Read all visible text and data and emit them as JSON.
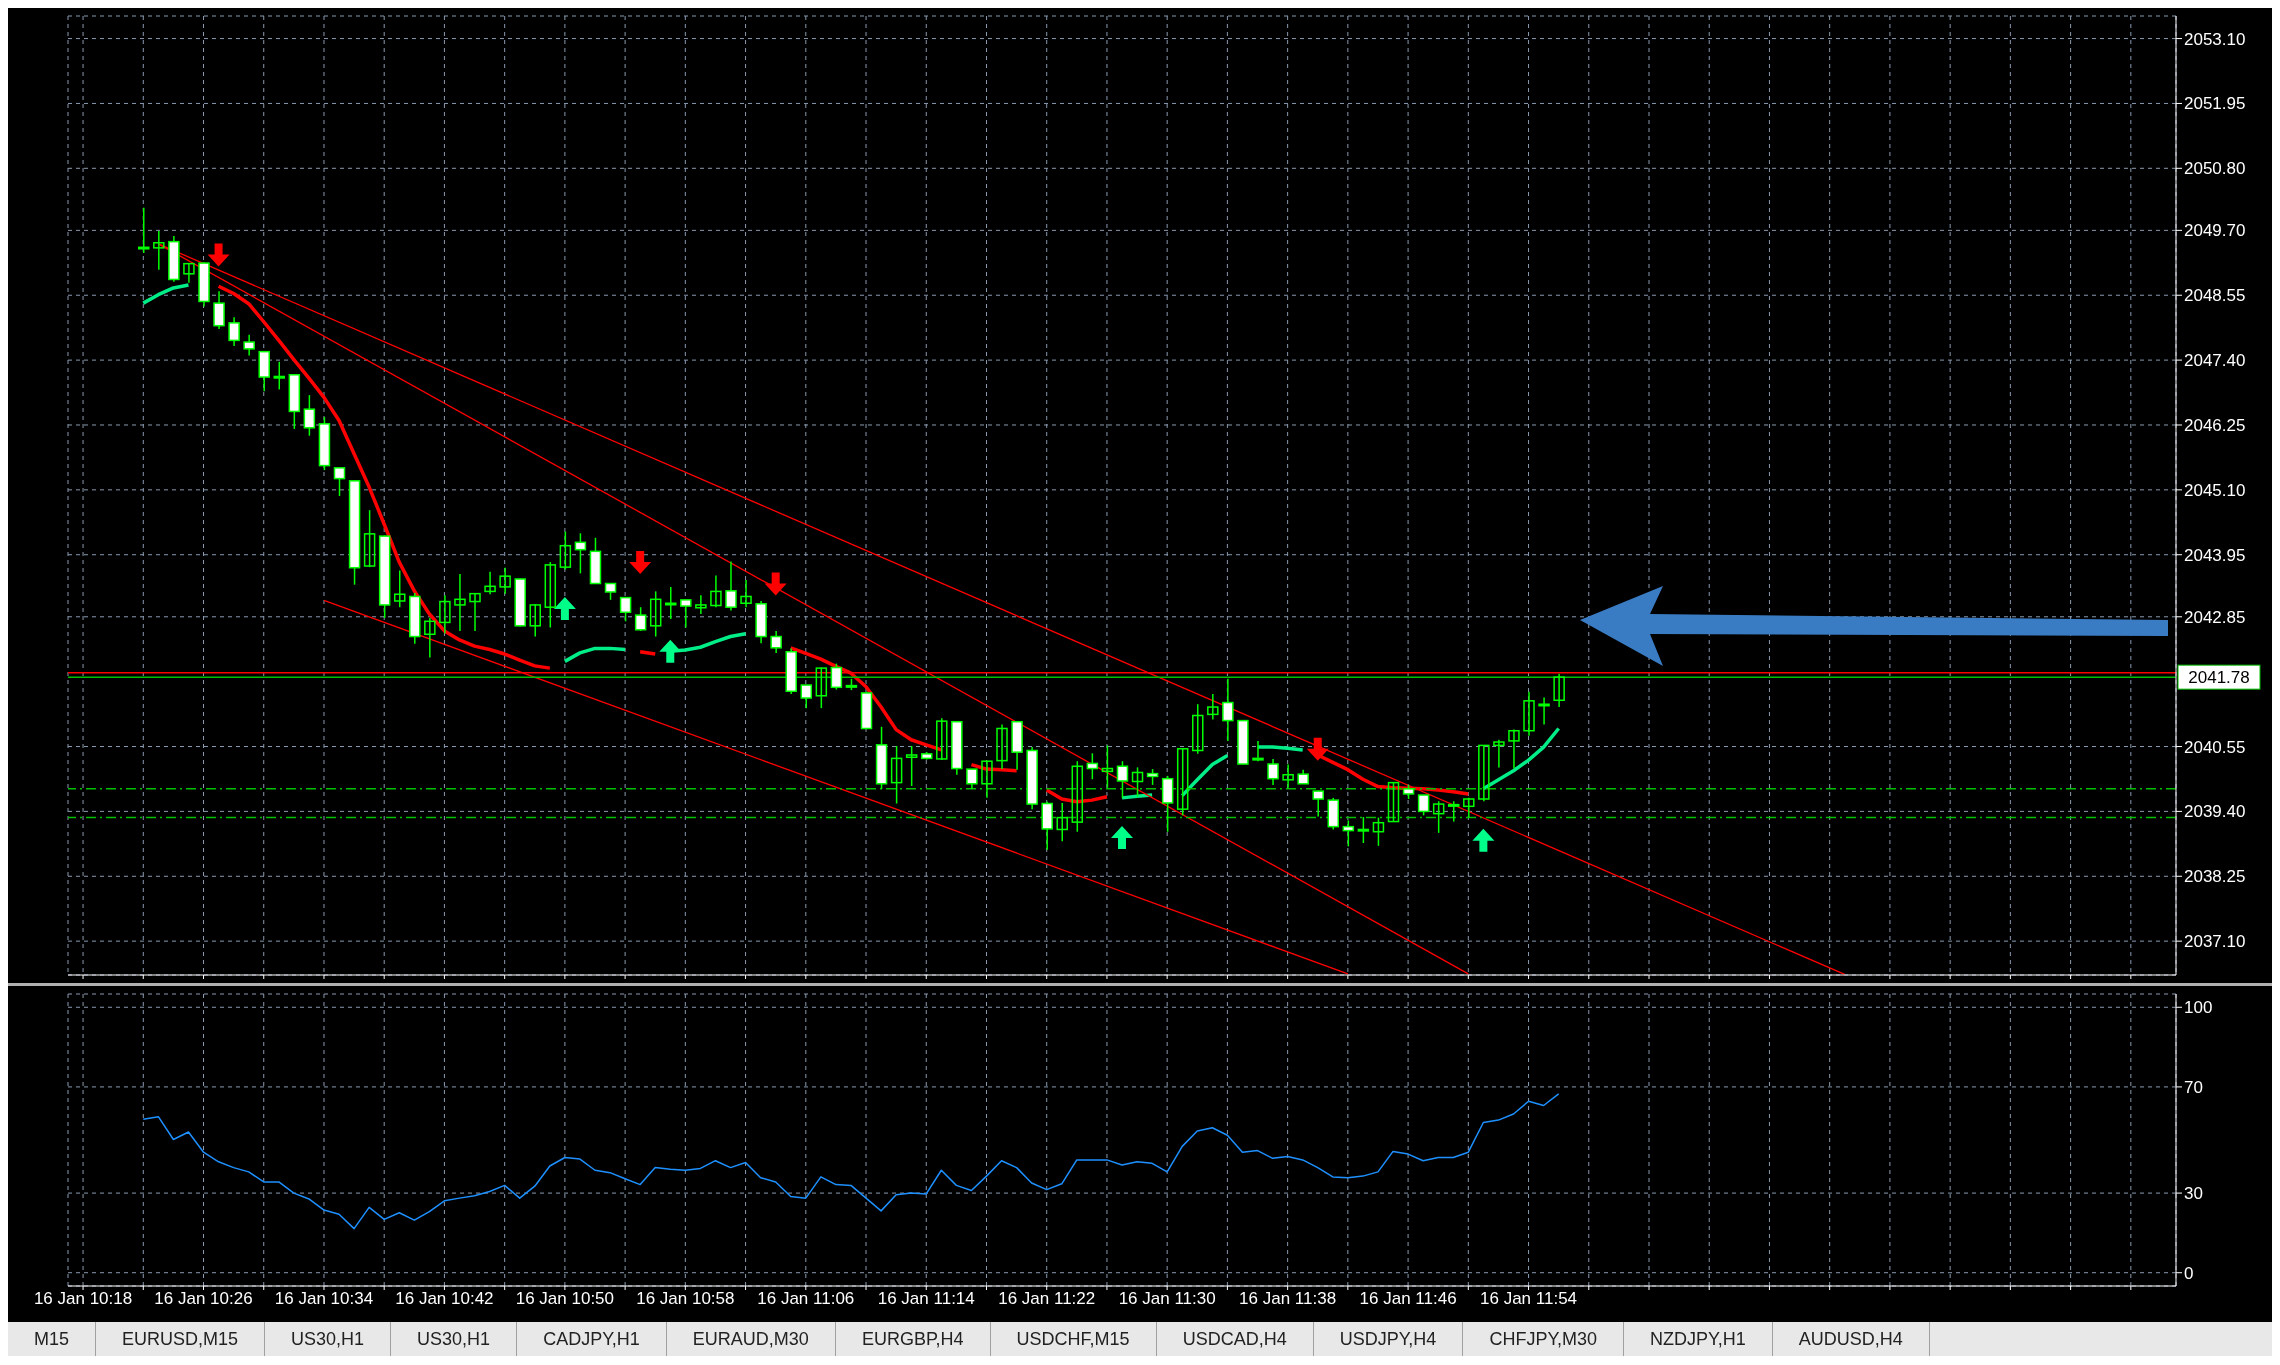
{
  "chart_data": [
    {
      "type": "candlestick",
      "color": "#00ff00",
      "grid": true,
      "tick_labels": "y",
      "x": [
        "--01-16T10:22",
        "--01-16T10:23",
        "--01-16T10:24",
        "--01-16T10:25",
        "--01-16T10:26",
        "--01-16T10:27",
        "--01-16T10:28",
        "--01-16T10:29",
        "--01-16T10:30",
        "--01-16T10:31",
        "--01-16T10:32",
        "--01-16T10:33",
        "--01-16T10:34",
        "--01-16T10:35",
        "--01-16T10:36",
        "--01-16T10:37",
        "--01-16T10:38",
        "--01-16T10:39",
        "--01-16T10:40",
        "--01-16T10:41",
        "--01-16T10:42",
        "--01-16T10:43",
        "--01-16T10:44",
        "--01-16T10:45",
        "--01-16T10:46",
        "--01-16T10:47",
        "--01-16T10:48",
        "--01-16T10:49",
        "--01-16T10:50",
        "--01-16T10:51",
        "--01-16T10:52",
        "--01-16T10:53",
        "--01-16T10:54",
        "--01-16T10:55",
        "--01-16T10:56",
        "--01-16T10:57",
        "--01-16T10:58",
        "--01-16T10:59",
        "--01-16T11:00",
        "--01-16T11:01",
        "--01-16T11:02",
        "--01-16T11:03",
        "--01-16T11:04",
        "--01-16T11:05",
        "--01-16T11:06",
        "--01-16T11:07",
        "--01-16T11:08",
        "--01-16T11:09",
        "--01-16T11:10",
        "--01-16T11:11",
        "--01-16T11:12",
        "--01-16T11:13",
        "--01-16T11:14",
        "--01-16T11:15",
        "--01-16T11:16",
        "--01-16T11:17",
        "--01-16T11:18",
        "--01-16T11:19",
        "--01-16T11:20",
        "--01-16T11:21",
        "--01-16T11:22",
        "--01-16T11:23",
        "--01-16T11:24",
        "--01-16T11:25",
        "--01-16T11:26",
        "--01-16T11:27",
        "--01-16T11:28",
        "--01-16T11:29",
        "--01-16T11:30",
        "--01-16T11:31",
        "--01-16T11:32",
        "--01-16T11:33",
        "--01-16T11:34",
        "--01-16T11:35",
        "--01-16T11:36",
        "--01-16T11:37",
        "--01-16T11:38",
        "--01-16T11:39",
        "--01-16T11:40",
        "--01-16T11:41",
        "--01-16T11:42",
        "--01-16T11:43",
        "--01-16T11:44",
        "--01-16T11:45",
        "--01-16T11:46",
        "--01-16T11:47",
        "--01-16T11:48",
        "--01-16T11:49",
        "--01-16T11:50",
        "--01-16T11:51",
        "--01-16T11:52",
        "--01-16T11:53",
        "--01-16T11:54",
        "--01-16T11:55",
        "--01-16T11:56"
      ],
      "ohlc": [
        [
          2049.38,
          2050.1,
          2049.3,
          2049.4
        ],
        [
          2049.39,
          2049.69,
          2049.0,
          2049.48
        ],
        [
          2049.5,
          2049.6,
          2048.79,
          2048.83
        ],
        [
          2048.93,
          2049.12,
          2048.77,
          2049.11
        ],
        [
          2049.12,
          2049.13,
          2048.35,
          2048.44
        ],
        [
          2048.41,
          2048.62,
          2047.95,
          2048.01
        ],
        [
          2048.06,
          2048.16,
          2047.65,
          2047.75
        ],
        [
          2047.72,
          2047.85,
          2047.48,
          2047.6
        ],
        [
          2047.55,
          2047.56,
          2046.85,
          2047.1
        ],
        [
          2047.11,
          2047.37,
          2046.88,
          2047.1
        ],
        [
          2047.14,
          2047.15,
          2046.18,
          2046.49
        ],
        [
          2046.53,
          2046.78,
          2046.06,
          2046.2
        ],
        [
          2046.27,
          2046.39,
          2045.45,
          2045.53
        ],
        [
          2045.49,
          2045.49,
          2044.99,
          2045.3
        ],
        [
          2045.26,
          2045.27,
          2043.42,
          2043.72
        ],
        [
          2043.75,
          2044.74,
          2043.73,
          2044.32
        ],
        [
          2044.28,
          2044.29,
          2042.83,
          2043.06
        ],
        [
          2043.13,
          2043.67,
          2043.02,
          2043.25
        ],
        [
          2043.21,
          2043.27,
          2042.37,
          2042.5
        ],
        [
          2042.54,
          2042.83,
          2042.13,
          2042.77
        ],
        [
          2042.75,
          2043.23,
          2042.56,
          2043.12
        ],
        [
          2043.06,
          2043.61,
          2042.6,
          2043.16
        ],
        [
          2043.12,
          2043.26,
          2042.6,
          2043.26
        ],
        [
          2043.3,
          2043.65,
          2043.25,
          2043.39
        ],
        [
          2043.38,
          2043.72,
          2043.26,
          2043.57
        ],
        [
          2043.52,
          2043.53,
          2042.68,
          2042.69
        ],
        [
          2042.69,
          2043.07,
          2042.5,
          2043.06
        ],
        [
          2043.02,
          2043.82,
          2042.66,
          2043.77
        ],
        [
          2043.73,
          2044.36,
          2043.69,
          2044.11
        ],
        [
          2044.17,
          2044.33,
          2043.62,
          2044.04
        ],
        [
          2044.01,
          2044.25,
          2043.44,
          2043.44
        ],
        [
          2043.44,
          2043.45,
          2043.15,
          2043.29
        ],
        [
          2043.19,
          2043.2,
          2042.77,
          2042.93
        ],
        [
          2042.88,
          2043.02,
          2042.6,
          2042.62
        ],
        [
          2042.69,
          2043.3,
          2042.5,
          2043.16
        ],
        [
          2043.08,
          2043.38,
          2042.81,
          2043.09
        ],
        [
          2043.15,
          2043.15,
          2042.66,
          2043.04
        ],
        [
          2043.01,
          2043.23,
          2042.9,
          2043.06
        ],
        [
          2043.05,
          2043.58,
          2043.02,
          2043.3
        ],
        [
          2043.31,
          2043.83,
          2042.96,
          2043.02
        ],
        [
          2043.09,
          2043.5,
          2043.02,
          2043.21
        ],
        [
          2043.08,
          2043.13,
          2042.38,
          2042.5
        ],
        [
          2042.5,
          2042.6,
          2042.21,
          2042.3
        ],
        [
          2042.23,
          2042.29,
          2041.48,
          2041.53
        ],
        [
          2041.64,
          2041.64,
          2041.23,
          2041.41
        ],
        [
          2041.45,
          2041.95,
          2041.23,
          2041.94
        ],
        [
          2041.95,
          2042.02,
          2041.56,
          2041.6
        ],
        [
          2041.63,
          2041.75,
          2041.55,
          2041.61
        ],
        [
          2041.5,
          2041.52,
          2040.87,
          2040.87
        ],
        [
          2040.58,
          2040.9,
          2039.8,
          2039.89
        ],
        [
          2039.91,
          2040.56,
          2039.54,
          2040.34
        ],
        [
          2040.36,
          2040.56,
          2039.85,
          2040.4
        ],
        [
          2040.42,
          2040.45,
          2040.32,
          2040.34
        ],
        [
          2040.33,
          2041.05,
          2040.31,
          2041.0
        ],
        [
          2040.99,
          2041.0,
          2040.05,
          2040.16
        ],
        [
          2040.15,
          2040.15,
          2039.8,
          2039.89
        ],
        [
          2039.89,
          2040.3,
          2039.64,
          2040.29
        ],
        [
          2040.3,
          2040.94,
          2040.15,
          2040.87
        ],
        [
          2040.99,
          2041.0,
          2040.14,
          2040.45
        ],
        [
          2040.48,
          2040.54,
          2039.44,
          2039.53
        ],
        [
          2039.54,
          2039.57,
          2038.72,
          2039.09
        ],
        [
          2039.08,
          2039.55,
          2038.87,
          2039.29
        ],
        [
          2039.21,
          2040.29,
          2039.04,
          2040.2
        ],
        [
          2040.25,
          2040.43,
          2039.97,
          2040.16
        ],
        [
          2040.11,
          2040.57,
          2039.82,
          2040.16
        ],
        [
          2040.2,
          2040.29,
          2039.64,
          2039.94
        ],
        [
          2039.93,
          2040.18,
          2039.66,
          2040.09
        ],
        [
          2040.07,
          2040.15,
          2039.87,
          2040.02
        ],
        [
          2039.98,
          2040.03,
          2039.04,
          2039.55
        ],
        [
          2039.44,
          2040.51,
          2039.33,
          2040.51
        ],
        [
          2040.48,
          2041.3,
          2040.42,
          2041.1
        ],
        [
          2041.12,
          2041.48,
          2041.03,
          2041.25
        ],
        [
          2041.33,
          2041.75,
          2040.65,
          2041.01
        ],
        [
          2041.01,
          2041.02,
          2040.23,
          2040.24
        ],
        [
          2040.32,
          2040.65,
          2040.29,
          2040.34
        ],
        [
          2040.24,
          2040.33,
          2039.87,
          2039.98
        ],
        [
          2039.96,
          2040.23,
          2039.82,
          2040.05
        ],
        [
          2040.06,
          2040.14,
          2039.89,
          2039.89
        ],
        [
          2039.76,
          2039.77,
          2039.31,
          2039.62
        ],
        [
          2039.6,
          2039.64,
          2039.08,
          2039.13
        ],
        [
          2039.13,
          2039.24,
          2038.78,
          2039.06
        ],
        [
          2039.08,
          2039.3,
          2038.84,
          2039.08
        ],
        [
          2039.04,
          2039.29,
          2038.79,
          2039.2
        ],
        [
          2039.22,
          2039.91,
          2039.22,
          2039.91
        ],
        [
          2039.8,
          2039.87,
          2039.62,
          2039.71
        ],
        [
          2039.69,
          2039.69,
          2039.33,
          2039.4
        ],
        [
          2039.36,
          2039.58,
          2039.02,
          2039.53
        ],
        [
          2039.51,
          2039.58,
          2039.22,
          2039.52
        ],
        [
          2039.49,
          2039.64,
          2039.29,
          2039.62
        ],
        [
          2039.62,
          2040.57,
          2039.58,
          2040.57
        ],
        [
          2040.57,
          2040.67,
          2040.18,
          2040.63
        ],
        [
          2040.65,
          2040.85,
          2040.16,
          2040.83
        ],
        [
          2040.83,
          2041.52,
          2040.74,
          2041.36
        ],
        [
          2041.3,
          2041.42,
          2040.94,
          2041.3
        ],
        [
          2041.37,
          2041.84,
          2041.25,
          2041.78
        ]
      ],
      "series": [
        {
          "type": "line",
          "color": "#ff0000",
          "values": [
            null,
            null,
            null,
            null,
            null,
            2048.71,
            2048.58,
            2048.4,
            2048.08,
            2047.75,
            2047.41,
            2047.08,
            2046.74,
            2046.33,
            2045.74,
            2045.15,
            2044.49,
            2043.82,
            2043.31,
            2042.9,
            2042.6,
            2042.44,
            2042.33,
            2042.27,
            2042.19,
            2042.08,
            2041.98,
            2041.94,
            null,
            null,
            null,
            null,
            null,
            2042.23,
            2042.19,
            null,
            null,
            null,
            null,
            null,
            null,
            null,
            null,
            2042.3,
            2042.2,
            2042.1,
            2041.97,
            2041.85,
            2041.61,
            2041.25,
            2040.85,
            2040.67,
            2040.58,
            2040.49,
            null,
            2040.23,
            2040.15,
            2040.14,
            2040.12,
            null,
            2039.78,
            2039.62,
            2039.57,
            2039.6,
            2039.66,
            null,
            null,
            null,
            null,
            null,
            null,
            null,
            null,
            null,
            null,
            null,
            null,
            null,
            2040.4,
            2040.27,
            2040.14,
            2039.97,
            2039.84,
            2039.82,
            2039.81,
            2039.8,
            2039.78,
            2039.75,
            2039.71,
            null,
            null,
            null,
            null,
            null,
            null
          ]
        },
        {
          "type": "line",
          "color": "#00ee88",
          "values": [
            2048.41,
            2048.56,
            2048.68,
            2048.73,
            null,
            null,
            null,
            null,
            null,
            null,
            null,
            null,
            null,
            null,
            null,
            null,
            null,
            null,
            null,
            null,
            null,
            null,
            null,
            null,
            null,
            null,
            null,
            null,
            2042.06,
            2042.21,
            2042.29,
            2042.29,
            2042.27,
            null,
            null,
            2042.24,
            2042.26,
            2042.31,
            2042.41,
            2042.5,
            2042.55,
            null,
            null,
            null,
            null,
            null,
            null,
            null,
            null,
            null,
            null,
            null,
            null,
            null,
            null,
            null,
            null,
            null,
            null,
            null,
            null,
            null,
            null,
            null,
            null,
            2039.64,
            2039.67,
            2039.69,
            null,
            2039.68,
            2039.96,
            2040.23,
            2040.39,
            null,
            2040.54,
            2040.54,
            2040.52,
            2040.49,
            null,
            null,
            null,
            null,
            null,
            null,
            null,
            null,
            null,
            null,
            null,
            2039.8,
            2039.96,
            2040.12,
            2040.31,
            2040.54,
            2040.87
          ]
        },
        {
          "type": "line",
          "color": "#ff0000",
          "x": [
            "--01-16T10:23",
            "--01-16T12:15"
          ],
          "values": [
            2049.46,
            2036.51
          ]
        },
        {
          "type": "line",
          "color": "#ff0000",
          "x": [
            "--01-16T10:23",
            "--01-16T11:50"
          ],
          "values": [
            2049.46,
            2036.52
          ]
        },
        {
          "type": "line",
          "color": "#ff0000",
          "x": [
            "--01-16T10:34",
            "--01-16T11:42"
          ],
          "values": [
            2043.14,
            2036.52
          ]
        },
        {
          "type": "scatter",
          "color": "#ff0000",
          "marker": "triangle",
          "x": [
            "--01-16T10:27",
            "--01-16T10:55",
            "--01-16T11:04",
            "--01-16T11:40"
          ],
          "values": [
            2049.27,
            2043.82,
            2043.44,
            2040.51
          ]
        },
        {
          "type": "scatter",
          "color": "#00ff88",
          "marker": "triangle",
          "x": [
            "--01-16T10:50",
            "--01-16T10:57",
            "--01-16T11:27",
            "--01-16T11:51"
          ],
          "values": [
            2042.99,
            2042.23,
            2038.93,
            2038.88
          ]
        }
      ],
      "ref_lines": [
        {
          "axis": "y",
          "value": 2041.86,
          "label": null,
          "color": "#ff0000"
        },
        {
          "axis": "y",
          "value": 2041.78,
          "label": "2041.78",
          "color": "#00c000"
        },
        {
          "axis": "y",
          "value": 2039.8,
          "label": null,
          "color": "#00c000",
          "line_style": "dashed"
        },
        {
          "axis": "y",
          "value": 2039.29,
          "label": null,
          "color": "#00c000",
          "line_style": "dashed"
        }
      ],
      "xlim": [
        "--01-16T10:17",
        "--01-16T12:37"
      ],
      "xticks": [
        {
          "value": "--01-16T10:18",
          "label": null
        },
        {
          "value": "--01-16T10:22",
          "label": null
        },
        {
          "value": "--01-16T10:26",
          "label": null
        },
        {
          "value": "--01-16T10:30",
          "label": null
        },
        {
          "value": "--01-16T10:34",
          "label": null
        },
        {
          "value": "--01-16T10:38",
          "label": null
        },
        {
          "value": "--01-16T10:42",
          "label": null
        },
        {
          "value": "--01-16T10:46",
          "label": null
        },
        {
          "value": "--01-16T10:50",
          "label": null
        },
        {
          "value": "--01-16T10:54",
          "label": null
        },
        {
          "value": "--01-16T10:58",
          "label": null
        },
        {
          "value": "--01-16T11:02",
          "label": null
        },
        {
          "value": "--01-16T11:06",
          "label": null
        },
        {
          "value": "--01-16T11:10",
          "label": null
        },
        {
          "value": "--01-16T11:14",
          "label": null
        },
        {
          "value": "--01-16T11:18",
          "label": null
        },
        {
          "value": "--01-16T11:22",
          "label": null
        },
        {
          "value": "--01-16T11:26",
          "label": null
        },
        {
          "value": "--01-16T11:30",
          "label": null
        },
        {
          "value": "--01-16T11:34",
          "label": null
        },
        {
          "value": "--01-16T11:38",
          "label": null
        },
        {
          "value": "--01-16T11:42",
          "label": null
        },
        {
          "value": "--01-16T11:46",
          "label": null
        },
        {
          "value": "--01-16T11:50",
          "label": null
        },
        {
          "value": "--01-16T11:54",
          "label": null
        },
        {
          "value": "--01-16T11:58",
          "label": null
        },
        {
          "value": "--01-16T12:02",
          "label": null
        },
        {
          "value": "--01-16T12:06",
          "label": null
        },
        {
          "value": "--01-16T12:10",
          "label": null
        },
        {
          "value": "--01-16T12:14",
          "label": null
        },
        {
          "value": "--01-16T12:18",
          "label": null
        },
        {
          "value": "--01-16T12:22",
          "label": null
        },
        {
          "value": "--01-16T12:26",
          "label": null
        },
        {
          "value": "--01-16T12:30",
          "label": null
        },
        {
          "value": "--01-16T12:34",
          "label": null
        }
      ],
      "ylim": [
        2036.5,
        2053.5
      ],
      "yticks": [
        {
          "value": 2053.1,
          "label": "2053.10"
        },
        {
          "value": 2051.95,
          "label": "2051.95"
        },
        {
          "value": 2050.8,
          "label": "2050.80"
        },
        {
          "value": 2049.7,
          "label": "2049.70"
        },
        {
          "value": 2048.55,
          "label": "2048.55"
        },
        {
          "value": 2047.4,
          "label": "2047.40"
        },
        {
          "value": 2046.25,
          "label": "2046.25"
        },
        {
          "value": 2045.1,
          "label": "2045.10"
        },
        {
          "value": 2043.95,
          "label": "2043.95"
        },
        {
          "value": 2042.85,
          "label": "2042.85"
        },
        {
          "value": 2040.55,
          "label": "2040.55"
        },
        {
          "value": 2039.4,
          "label": "2039.40"
        },
        {
          "value": 2038.25,
          "label": "2038.25"
        },
        {
          "value": 2037.1,
          "label": "2037.10"
        }
      ]
    },
    {
      "type": "line",
      "color": "#1e90ff",
      "grid": true,
      "x": [
        "--01-16T10:22",
        "--01-16T10:23",
        "--01-16T10:24",
        "--01-16T10:25",
        "--01-16T10:26",
        "--01-16T10:27",
        "--01-16T10:28",
        "--01-16T10:29",
        "--01-16T10:30",
        "--01-16T10:31",
        "--01-16T10:32",
        "--01-16T10:33",
        "--01-16T10:34",
        "--01-16T10:35",
        "--01-16T10:36",
        "--01-16T10:37",
        "--01-16T10:38",
        "--01-16T10:39",
        "--01-16T10:40",
        "--01-16T10:41",
        "--01-16T10:42",
        "--01-16T10:43",
        "--01-16T10:44",
        "--01-16T10:45",
        "--01-16T10:46",
        "--01-16T10:47",
        "--01-16T10:48",
        "--01-16T10:49",
        "--01-16T10:50",
        "--01-16T10:51",
        "--01-16T10:52",
        "--01-16T10:53",
        "--01-16T10:54",
        "--01-16T10:55",
        "--01-16T10:56",
        "--01-16T10:57",
        "--01-16T10:58",
        "--01-16T10:59",
        "--01-16T11:00",
        "--01-16T11:01",
        "--01-16T11:02",
        "--01-16T11:03",
        "--01-16T11:04",
        "--01-16T11:05",
        "--01-16T11:06",
        "--01-16T11:07",
        "--01-16T11:08",
        "--01-16T11:09",
        "--01-16T11:10",
        "--01-16T11:11",
        "--01-16T11:12",
        "--01-16T11:13",
        "--01-16T11:14",
        "--01-16T11:15",
        "--01-16T11:16",
        "--01-16T11:17",
        "--01-16T11:18",
        "--01-16T11:19",
        "--01-16T11:20",
        "--01-16T11:21",
        "--01-16T11:22",
        "--01-16T11:23",
        "--01-16T11:24",
        "--01-16T11:25",
        "--01-16T11:26",
        "--01-16T11:27",
        "--01-16T11:28",
        "--01-16T11:29",
        "--01-16T11:30",
        "--01-16T11:31",
        "--01-16T11:32",
        "--01-16T11:33",
        "--01-16T11:34",
        "--01-16T11:35",
        "--01-16T11:36",
        "--01-16T11:37",
        "--01-16T11:38",
        "--01-16T11:39",
        "--01-16T11:40",
        "--01-16T11:41",
        "--01-16T11:42",
        "--01-16T11:43",
        "--01-16T11:44",
        "--01-16T11:45",
        "--01-16T11:46",
        "--01-16T11:47",
        "--01-16T11:48",
        "--01-16T11:49",
        "--01-16T11:50",
        "--01-16T11:51",
        "--01-16T11:52",
        "--01-16T11:53",
        "--01-16T11:54",
        "--01-16T11:55",
        "--01-16T11:56"
      ],
      "values": [
        57.8,
        58.8,
        50.2,
        53.0,
        45.4,
        41.8,
        39.6,
        38.0,
        34.2,
        34.2,
        30.0,
        27.8,
        23.6,
        22.0,
        16.6,
        24.6,
        20.1,
        22.6,
        19.8,
        23.0,
        27.1,
        28.1,
        29.0,
        30.6,
        32.9,
        28.1,
        32.6,
        40.2,
        43.4,
        42.8,
        38.6,
        37.7,
        35.4,
        33.2,
        39.6,
        39.0,
        38.6,
        39.3,
        42.2,
        39.6,
        41.5,
        35.8,
        34.2,
        28.7,
        28.1,
        36.1,
        33.2,
        32.9,
        28.1,
        23.3,
        29.4,
        30.0,
        29.7,
        38.6,
        32.9,
        31.0,
        36.4,
        42.2,
        39.6,
        33.8,
        31.3,
        33.5,
        42.5,
        42.5,
        42.5,
        40.6,
        41.8,
        41.2,
        38.0,
        47.6,
        53.4,
        54.6,
        51.8,
        45.4,
        46.0,
        43.1,
        43.8,
        42.5,
        39.6,
        36.1,
        35.8,
        36.4,
        38.0,
        45.7,
        44.7,
        42.2,
        43.4,
        43.4,
        45.4,
        56.6,
        57.5,
        59.8,
        64.6,
        63.0,
        67.4
      ],
      "xlim": [
        "--01-16T10:17",
        "--01-16T12:37"
      ],
      "xticks": [
        {
          "value": "--01-16T10:18",
          "label": "16 Jan 10:18"
        },
        {
          "value": "--01-16T10:22",
          "label": null
        },
        {
          "value": "--01-16T10:26",
          "label": "16 Jan 10:26"
        },
        {
          "value": "--01-16T10:30",
          "label": null
        },
        {
          "value": "--01-16T10:34",
          "label": "16 Jan 10:34"
        },
        {
          "value": "--01-16T10:38",
          "label": null
        },
        {
          "value": "--01-16T10:42",
          "label": "16 Jan 10:42"
        },
        {
          "value": "--01-16T10:46",
          "label": null
        },
        {
          "value": "--01-16T10:50",
          "label": "16 Jan 10:50"
        },
        {
          "value": "--01-16T10:54",
          "label": null
        },
        {
          "value": "--01-16T10:58",
          "label": "16 Jan 10:58"
        },
        {
          "value": "--01-16T11:02",
          "label": null
        },
        {
          "value": "--01-16T11:06",
          "label": "16 Jan 11:06"
        },
        {
          "value": "--01-16T11:10",
          "label": null
        },
        {
          "value": "--01-16T11:14",
          "label": "16 Jan 11:14"
        },
        {
          "value": "--01-16T11:18",
          "label": null
        },
        {
          "value": "--01-16T11:22",
          "label": "16 Jan 11:22"
        },
        {
          "value": "--01-16T11:26",
          "label": null
        },
        {
          "value": "--01-16T11:30",
          "label": "16 Jan 11:30"
        },
        {
          "value": "--01-16T11:34",
          "label": null
        },
        {
          "value": "--01-16T11:38",
          "label": "16 Jan 11:38"
        },
        {
          "value": "--01-16T11:42",
          "label": null
        },
        {
          "value": "--01-16T11:46",
          "label": "16 Jan 11:46"
        },
        {
          "value": "--01-16T11:50",
          "label": null
        },
        {
          "value": "--01-16T11:54",
          "label": "16 Jan 11:54"
        },
        {
          "value": "--01-16T11:58",
          "label": null
        },
        {
          "value": "--01-16T12:02",
          "label": null
        },
        {
          "value": "--01-16T12:06",
          "label": null
        },
        {
          "value": "--01-16T12:10",
          "label": null
        },
        {
          "value": "--01-16T12:14",
          "label": null
        },
        {
          "value": "--01-16T12:18",
          "label": null
        },
        {
          "value": "--01-16T12:22",
          "label": null
        },
        {
          "value": "--01-16T12:26",
          "label": null
        },
        {
          "value": "--01-16T12:30",
          "label": null
        },
        {
          "value": "--01-16T12:34",
          "label": null
        }
      ],
      "ylim": [
        -5,
        105
      ],
      "yticks": [
        100,
        70,
        30,
        0
      ],
      "annotations": [
        "M15",
        "EURUSD,M15",
        "US30,H1",
        "US30,H1",
        "CADJPY,H1",
        "EURAUD,M30",
        "EURGBP,H4",
        "USDCHF,M15",
        "USDCAD,H4",
        "USDJPY,H4",
        "CHFJPY,M30",
        "NZDJPY,H1",
        "AUDUSD,H4"
      ]
    }
  ]
}
